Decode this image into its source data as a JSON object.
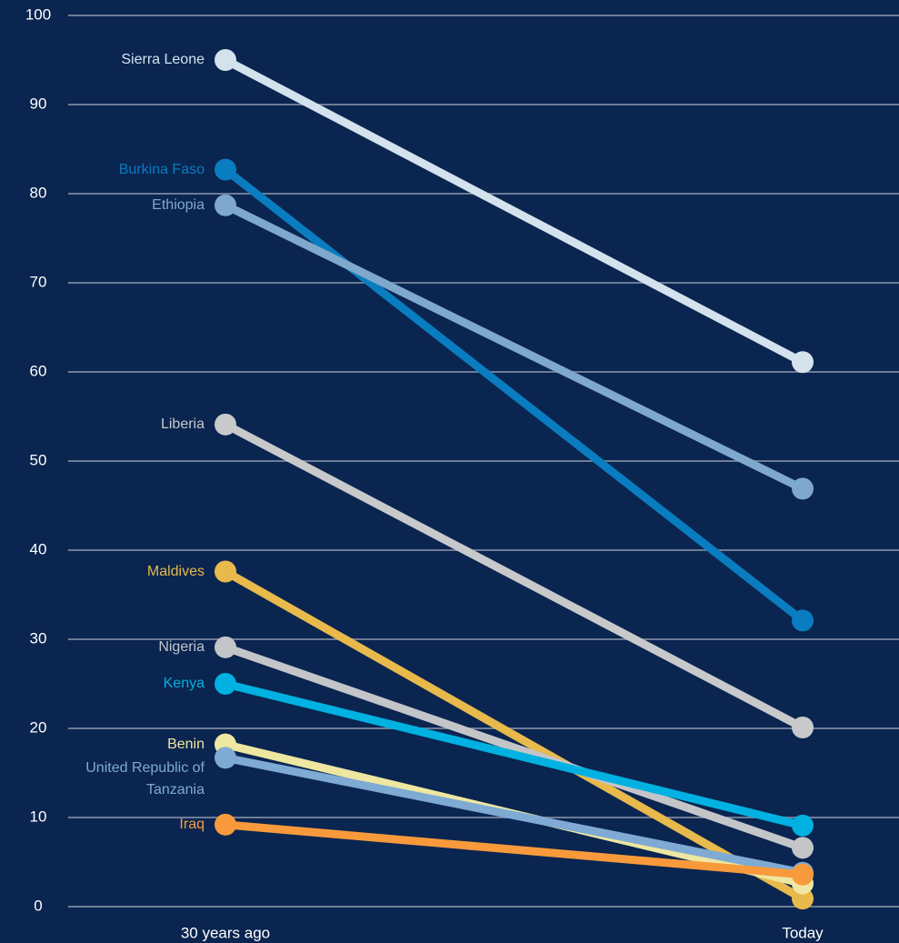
{
  "chart_data": {
    "type": "slope",
    "categories": [
      "30 years ago",
      "Today"
    ],
    "series": [
      {
        "name": "Sierra Leone",
        "color": "#d3e2ec",
        "values": [
          95.0,
          61.1
        ]
      },
      {
        "name": "Burkina Faso",
        "color": "#0a7cc0",
        "values": [
          82.7,
          32.1
        ]
      },
      {
        "name": "Ethiopia",
        "color": "#7ea8cc",
        "values": [
          78.7,
          46.9
        ]
      },
      {
        "name": "Liberia",
        "color": "#c8c9cb",
        "values": [
          54.1,
          20.1
        ]
      },
      {
        "name": "Maldives",
        "color": "#e8b94b",
        "values": [
          37.6,
          0.9
        ]
      },
      {
        "name": "Nigeria",
        "color": "#c3c5c9",
        "values": [
          29.1,
          6.6
        ]
      },
      {
        "name": "Kenya",
        "color": "#00b1e1",
        "values": [
          25.0,
          9.1
        ]
      },
      {
        "name": "Benin",
        "color": "#eee7a1",
        "values": [
          18.2,
          2.6
        ]
      },
      {
        "name": "United Republic of Tanzania",
        "color": "#7eaad3",
        "values": [
          16.7,
          3.8
        ]
      },
      {
        "name": "Iraq",
        "color": "#f89a3c",
        "values": [
          9.2,
          3.6
        ]
      }
    ],
    "ylim": [
      0,
      100
    ],
    "yticks": [
      0,
      10,
      20,
      30,
      40,
      50,
      60,
      70,
      80,
      90,
      100
    ],
    "grid": true
  }
}
